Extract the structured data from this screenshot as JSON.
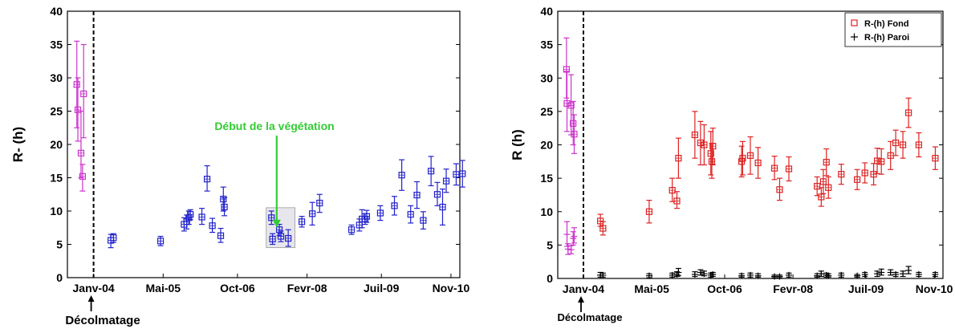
{
  "chart_data": [
    {
      "type": "scatter",
      "xlabel": "",
      "ylabel": "R- (h)",
      "ylim": [
        0,
        40
      ],
      "yticks": [
        0,
        5,
        10,
        15,
        20,
        25,
        30,
        35,
        40
      ],
      "xticks": [
        {
          "label": "Janv-04",
          "t": 0
        },
        {
          "label": "Mai-05",
          "t": 1.33
        },
        {
          "label": "Oct-06",
          "t": 2.75
        },
        {
          "label": "Fevr-08",
          "t": 4.08
        },
        {
          "label": "Juil-09",
          "t": 5.5
        },
        {
          "label": "Nov-10",
          "t": 6.83
        }
      ],
      "xlim": [
        -0.5,
        7.0
      ],
      "grid": false,
      "legend": "none",
      "colors": {
        "before": "#cc33cc",
        "after": "#2222cc",
        "vline": "#000000",
        "annotation": "#33cc33"
      },
      "vline": {
        "t": 0.0,
        "label": "Décolmatage"
      },
      "annotation": {
        "text": "Début de la végétation",
        "arrow_to_t": 3.5,
        "arrow_to_y": 7.5
      },
      "highlight_box": {
        "t": [
          3.3,
          3.85
        ],
        "y": [
          4.5,
          10.5
        ]
      },
      "series": [
        {
          "color_key": "before",
          "points": [
            {
              "t": -0.32,
              "y": 29,
              "lo": 22.5,
              "hi": 35.5
            },
            {
              "t": -0.3,
              "y": 25.2,
              "lo": 20.5,
              "hi": 30
            },
            {
              "t": -0.24,
              "y": 18.7,
              "lo": 15,
              "hi": 25
            },
            {
              "t": -0.21,
              "y": 15.2,
              "lo": 13,
              "hi": 17
            },
            {
              "t": -0.19,
              "y": 27.6,
              "lo": 21,
              "hi": 35
            }
          ]
        },
        {
          "color_key": "after",
          "points": [
            {
              "t": 0.33,
              "y": 5.6,
              "lo": 4.5,
              "hi": 6.5
            },
            {
              "t": 0.38,
              "y": 6.0,
              "lo": 5.3,
              "hi": 6.6
            },
            {
              "t": 1.28,
              "y": 5.5,
              "lo": 4.8,
              "hi": 6.2
            },
            {
              "t": 1.73,
              "y": 8.0,
              "lo": 7.0,
              "hi": 9.0
            },
            {
              "t": 1.78,
              "y": 8.4,
              "lo": 7.3,
              "hi": 9.4
            },
            {
              "t": 1.82,
              "y": 9.0,
              "lo": 8.0,
              "hi": 10.0
            },
            {
              "t": 1.85,
              "y": 9.5,
              "lo": 8.7,
              "hi": 10.2
            },
            {
              "t": 2.07,
              "y": 9.1,
              "lo": 8.0,
              "hi": 10.4
            },
            {
              "t": 2.17,
              "y": 14.8,
              "lo": 13.0,
              "hi": 16.8
            },
            {
              "t": 2.27,
              "y": 7.8,
              "lo": 6.8,
              "hi": 8.9
            },
            {
              "t": 2.43,
              "y": 6.3,
              "lo": 5.3,
              "hi": 7.4
            },
            {
              "t": 2.48,
              "y": 11.8,
              "lo": 10.0,
              "hi": 13.6
            },
            {
              "t": 2.5,
              "y": 10.6,
              "lo": 9.3,
              "hi": 12.0
            },
            {
              "t": 3.4,
              "y": 9.0,
              "lo": 8.0,
              "hi": 10.0
            },
            {
              "t": 3.42,
              "y": 5.8,
              "lo": 5.0,
              "hi": 6.6
            },
            {
              "t": 3.55,
              "y": 7.2,
              "lo": 6.3,
              "hi": 8.0
            },
            {
              "t": 3.58,
              "y": 6.2,
              "lo": 5.4,
              "hi": 7.0
            },
            {
              "t": 3.72,
              "y": 5.9,
              "lo": 4.7,
              "hi": 7.2
            },
            {
              "t": 3.98,
              "y": 8.4,
              "lo": 7.6,
              "hi": 9.2
            },
            {
              "t": 4.18,
              "y": 9.6,
              "lo": 7.9,
              "hi": 11.3
            },
            {
              "t": 4.32,
              "y": 11.2,
              "lo": 9.8,
              "hi": 12.5
            },
            {
              "t": 4.93,
              "y": 7.2,
              "lo": 6.5,
              "hi": 7.9
            },
            {
              "t": 5.08,
              "y": 7.9,
              "lo": 7.0,
              "hi": 8.8
            },
            {
              "t": 5.13,
              "y": 8.8,
              "lo": 7.5,
              "hi": 10.2
            },
            {
              "t": 5.19,
              "y": 8.8,
              "lo": 8.0,
              "hi": 9.6
            },
            {
              "t": 5.22,
              "y": 9.2,
              "lo": 8.3,
              "hi": 10.1
            },
            {
              "t": 5.48,
              "y": 9.7,
              "lo": 8.6,
              "hi": 10.8
            },
            {
              "t": 5.75,
              "y": 10.8,
              "lo": 9.4,
              "hi": 12.2
            },
            {
              "t": 5.89,
              "y": 15.4,
              "lo": 13.1,
              "hi": 17.7
            },
            {
              "t": 6.06,
              "y": 9.5,
              "lo": 8.2,
              "hi": 10.8
            },
            {
              "t": 6.18,
              "y": 12.4,
              "lo": 10.4,
              "hi": 14.4
            },
            {
              "t": 6.3,
              "y": 8.6,
              "lo": 7.3,
              "hi": 9.9
            },
            {
              "t": 6.45,
              "y": 16.0,
              "lo": 13.8,
              "hi": 18.2
            },
            {
              "t": 6.57,
              "y": 12.5,
              "lo": 10.8,
              "hi": 14.3
            },
            {
              "t": 6.67,
              "y": 10.6,
              "lo": 7.9,
              "hi": 13.3
            },
            {
              "t": 6.74,
              "y": 14.5,
              "lo": 12.8,
              "hi": 16.3
            },
            {
              "t": 6.93,
              "y": 15.5,
              "lo": 13.9,
              "hi": 17.1
            },
            {
              "t": 7.05,
              "y": 15.6,
              "lo": 13.6,
              "hi": 17.6
            }
          ]
        }
      ]
    },
    {
      "type": "scatter",
      "xlabel": "",
      "ylabel": "R (h)",
      "ylim": [
        0,
        40
      ],
      "yticks": [
        0,
        5,
        10,
        15,
        20,
        25,
        30,
        35,
        40
      ],
      "xticks": [
        {
          "label": "Janv-04",
          "t": 0
        },
        {
          "label": "Mai-05",
          "t": 1.33
        },
        {
          "label": "Oct-06",
          "t": 2.75
        },
        {
          "label": "Fevr-08",
          "t": 4.08
        },
        {
          "label": "Juil-09",
          "t": 5.5
        },
        {
          "label": "Nov-10",
          "t": 6.83
        }
      ],
      "xlim": [
        -0.5,
        7.0
      ],
      "grid": false,
      "legend": "top-right",
      "colors": {
        "before": "#cc33cc",
        "fond": "#dd2222",
        "paroi": "#000000",
        "vline": "#000000"
      },
      "vline": {
        "t": 0.0,
        "label": "Décolmatage"
      },
      "series": [
        {
          "name": "",
          "color_key": "before",
          "marker": "square",
          "points": [
            {
              "t": -0.33,
              "y": 31.3,
              "lo": 27,
              "hi": 36
            },
            {
              "t": -0.32,
              "y": 26.2,
              "lo": 22,
              "hi": 31
            },
            {
              "t": -0.24,
              "y": 25.9,
              "lo": 21.5,
              "hi": 30.5
            },
            {
              "t": -0.2,
              "y": 23.2,
              "lo": 20,
              "hi": 26.5
            },
            {
              "t": -0.18,
              "y": 21.6,
              "lo": 18.7,
              "hi": 24.5
            }
          ]
        },
        {
          "name": "",
          "color_key": "before",
          "marker": "plus",
          "points": [
            {
              "t": -0.32,
              "y": 6.6,
              "lo": 4.8,
              "hi": 8.5
            },
            {
              "t": -0.3,
              "y": 4.4,
              "lo": 3.6,
              "hi": 5.2
            },
            {
              "t": -0.24,
              "y": 4.3,
              "lo": 3.7,
              "hi": 4.9
            },
            {
              "t": -0.2,
              "y": 6.0,
              "lo": 5.0,
              "hi": 7.0
            },
            {
              "t": -0.18,
              "y": 6.3,
              "lo": 5.3,
              "hi": 7.6
            }
          ]
        },
        {
          "name": "R-(h) Fond",
          "color_key": "fond",
          "marker": "square",
          "points": [
            {
              "t": 0.33,
              "y": 8.6,
              "lo": 7.8,
              "hi": 9.6
            },
            {
              "t": 0.38,
              "y": 7.5,
              "lo": 6.5,
              "hi": 8.5
            },
            {
              "t": 1.28,
              "y": 10.0,
              "lo": 8.3,
              "hi": 11.7
            },
            {
              "t": 1.73,
              "y": 13.2,
              "lo": 11.5,
              "hi": 15.0
            },
            {
              "t": 1.82,
              "y": 11.6,
              "lo": 10.5,
              "hi": 13.0
            },
            {
              "t": 1.85,
              "y": 18.0,
              "lo": 15.0,
              "hi": 21.0
            },
            {
              "t": 2.17,
              "y": 21.5,
              "lo": 18.0,
              "hi": 25.0
            },
            {
              "t": 2.28,
              "y": 20.3,
              "lo": 17.0,
              "hi": 23.5
            },
            {
              "t": 2.35,
              "y": 20.0,
              "lo": 17.0,
              "hi": 23.0
            },
            {
              "t": 2.48,
              "y": 18.7,
              "lo": 15.5,
              "hi": 22.0
            },
            {
              "t": 2.5,
              "y": 17.5,
              "lo": 15.0,
              "hi": 20.2
            },
            {
              "t": 2.52,
              "y": 19.8,
              "lo": 17.0,
              "hi": 22.5
            },
            {
              "t": 3.08,
              "y": 17.5,
              "lo": 15.2,
              "hi": 19.8
            },
            {
              "t": 3.1,
              "y": 18.0,
              "lo": 15.5,
              "hi": 20.5
            },
            {
              "t": 3.25,
              "y": 18.4,
              "lo": 15.6,
              "hi": 21.2
            },
            {
              "t": 3.4,
              "y": 17.3,
              "lo": 15.0,
              "hi": 19.6
            },
            {
              "t": 3.72,
              "y": 16.5,
              "lo": 14.8,
              "hi": 18.3
            },
            {
              "t": 3.82,
              "y": 13.3,
              "lo": 11.7,
              "hi": 15.0
            },
            {
              "t": 4.0,
              "y": 16.4,
              "lo": 14.6,
              "hi": 18.2
            },
            {
              "t": 4.55,
              "y": 13.8,
              "lo": 12.4,
              "hi": 15.2
            },
            {
              "t": 4.63,
              "y": 12.2,
              "lo": 10.8,
              "hi": 13.6
            },
            {
              "t": 4.67,
              "y": 14.5,
              "lo": 12.7,
              "hi": 16.3
            },
            {
              "t": 4.73,
              "y": 17.4,
              "lo": 15.4,
              "hi": 19.4
            },
            {
              "t": 4.77,
              "y": 13.6,
              "lo": 12.0,
              "hi": 15.2
            },
            {
              "t": 5.02,
              "y": 15.6,
              "lo": 14.1,
              "hi": 17.1
            },
            {
              "t": 5.33,
              "y": 14.8,
              "lo": 13.3,
              "hi": 16.3
            },
            {
              "t": 5.48,
              "y": 15.8,
              "lo": 14.3,
              "hi": 17.3
            },
            {
              "t": 5.65,
              "y": 15.6,
              "lo": 14.0,
              "hi": 17.2
            },
            {
              "t": 5.72,
              "y": 17.6,
              "lo": 15.7,
              "hi": 19.5
            },
            {
              "t": 5.8,
              "y": 17.5,
              "lo": 15.6,
              "hi": 19.4
            },
            {
              "t": 5.98,
              "y": 18.4,
              "lo": 16.3,
              "hi": 20.5
            },
            {
              "t": 6.08,
              "y": 20.3,
              "lo": 18.4,
              "hi": 22.2
            },
            {
              "t": 6.22,
              "y": 20.0,
              "lo": 18.0,
              "hi": 22.0
            },
            {
              "t": 6.33,
              "y": 24.8,
              "lo": 22.6,
              "hi": 27.0
            },
            {
              "t": 6.53,
              "y": 20.0,
              "lo": 18.2,
              "hi": 21.8
            },
            {
              "t": 6.85,
              "y": 18.0,
              "lo": 16.3,
              "hi": 19.7
            }
          ]
        },
        {
          "name": "R-(h) Paroi",
          "color_key": "paroi",
          "marker": "plus",
          "points": [
            {
              "t": 0.33,
              "y": 0.5,
              "lo": 0.2,
              "hi": 0.9
            },
            {
              "t": 0.38,
              "y": 0.5,
              "lo": 0.2,
              "hi": 0.8
            },
            {
              "t": 1.28,
              "y": 0.4,
              "lo": 0.1,
              "hi": 0.7
            },
            {
              "t": 1.73,
              "y": 0.5,
              "lo": 0.2,
              "hi": 0.8
            },
            {
              "t": 1.82,
              "y": 0.6,
              "lo": 0.3,
              "hi": 1.0
            },
            {
              "t": 1.85,
              "y": 0.9,
              "lo": 0.4,
              "hi": 1.5
            },
            {
              "t": 2.17,
              "y": 0.6,
              "lo": 0.3,
              "hi": 1.0
            },
            {
              "t": 2.28,
              "y": 0.9,
              "lo": 0.5,
              "hi": 1.3
            },
            {
              "t": 2.35,
              "y": 0.7,
              "lo": 0.4,
              "hi": 1.1
            },
            {
              "t": 2.48,
              "y": 0.5,
              "lo": 0.2,
              "hi": 0.8
            },
            {
              "t": 2.52,
              "y": 0.6,
              "lo": 0.3,
              "hi": 0.9
            },
            {
              "t": 3.08,
              "y": 0.4,
              "lo": 0.2,
              "hi": 0.7
            },
            {
              "t": 3.25,
              "y": 0.5,
              "lo": 0.2,
              "hi": 0.8
            },
            {
              "t": 3.4,
              "y": 0.4,
              "lo": 0.2,
              "hi": 0.7
            },
            {
              "t": 3.72,
              "y": 0.3,
              "lo": 0.1,
              "hi": 0.5
            },
            {
              "t": 3.82,
              "y": 0.3,
              "lo": 0.1,
              "hi": 0.5
            },
            {
              "t": 4.0,
              "y": 0.5,
              "lo": 0.2,
              "hi": 0.8
            },
            {
              "t": 4.55,
              "y": 0.4,
              "lo": 0.2,
              "hi": 0.7
            },
            {
              "t": 4.63,
              "y": 0.7,
              "lo": 0.3,
              "hi": 1.1
            },
            {
              "t": 4.73,
              "y": 0.5,
              "lo": 0.2,
              "hi": 0.8
            },
            {
              "t": 4.77,
              "y": 0.4,
              "lo": 0.2,
              "hi": 0.7
            },
            {
              "t": 5.02,
              "y": 0.5,
              "lo": 0.2,
              "hi": 0.8
            },
            {
              "t": 5.33,
              "y": 0.4,
              "lo": 0.2,
              "hi": 0.6
            },
            {
              "t": 5.48,
              "y": 0.6,
              "lo": 0.3,
              "hi": 0.9
            },
            {
              "t": 5.72,
              "y": 0.7,
              "lo": 0.3,
              "hi": 1.1
            },
            {
              "t": 5.8,
              "y": 0.9,
              "lo": 0.5,
              "hi": 1.4
            },
            {
              "t": 5.98,
              "y": 0.9,
              "lo": 0.5,
              "hi": 1.3
            },
            {
              "t": 6.08,
              "y": 0.6,
              "lo": 0.3,
              "hi": 0.9
            },
            {
              "t": 6.22,
              "y": 0.7,
              "lo": 0.3,
              "hi": 1.1
            },
            {
              "t": 6.33,
              "y": 1.2,
              "lo": 0.7,
              "hi": 1.8
            },
            {
              "t": 6.53,
              "y": 0.6,
              "lo": 0.3,
              "hi": 0.9
            },
            {
              "t": 6.85,
              "y": 0.6,
              "lo": 0.3,
              "hi": 0.9
            }
          ]
        }
      ]
    }
  ]
}
